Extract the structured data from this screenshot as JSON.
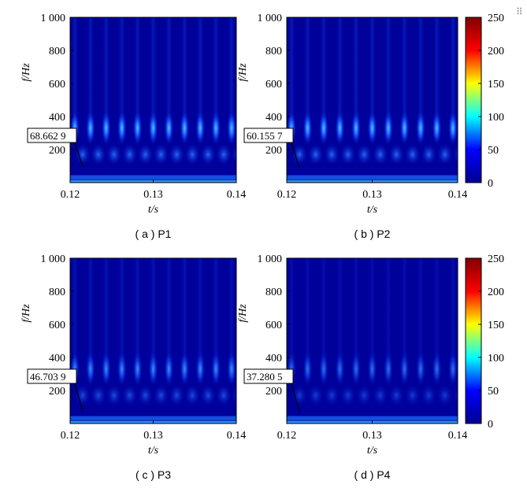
{
  "chart_data": [
    {
      "type": "heatmap",
      "caption": "( a ) P1",
      "xlabel": "t/s",
      "ylabel": "f/Hz",
      "xlim": [
        0.12,
        0.14
      ],
      "ylim": [
        0,
        1000
      ],
      "xticks": [
        "0.12",
        "0.13",
        "0.14"
      ],
      "yticks": [
        "200",
        "400",
        "600",
        "800",
        "1 000"
      ],
      "annotation": "68.662 9",
      "annotation_freq": 68.6629
    },
    {
      "type": "heatmap",
      "caption": "( b ) P2",
      "xlabel": "t/s",
      "ylabel": "f/Hz",
      "xlim": [
        0.12,
        0.14
      ],
      "ylim": [
        0,
        1000
      ],
      "xticks": [
        "0.12",
        "0.13",
        "0.14"
      ],
      "yticks": [
        "200",
        "400",
        "600",
        "800",
        "1 000"
      ],
      "annotation": "60.155 7",
      "annotation_freq": 60.1557,
      "colorbar": {
        "ticks": [
          "0",
          "50",
          "100",
          "150",
          "200",
          "250"
        ],
        "range": [
          0,
          250
        ]
      }
    },
    {
      "type": "heatmap",
      "caption": "( c ) P3",
      "xlabel": "t/s",
      "ylabel": "f/Hz",
      "xlim": [
        0.12,
        0.14
      ],
      "ylim": [
        0,
        1000
      ],
      "xticks": [
        "0.12",
        "0.13",
        "0.14"
      ],
      "yticks": [
        "200",
        "400",
        "600",
        "800",
        "1 000"
      ],
      "annotation": "46.703 9",
      "annotation_freq": 46.7039
    },
    {
      "type": "heatmap",
      "caption": "( d ) P4",
      "xlabel": "t/s",
      "ylabel": "f/Hz",
      "xlim": [
        0.12,
        0.14
      ],
      "ylim": [
        0,
        1000
      ],
      "xticks": [
        "0.12",
        "0.13",
        "0.14"
      ],
      "yticks": [
        "200",
        "400",
        "600",
        "800",
        "1 000"
      ],
      "annotation": "37.280 5",
      "annotation_freq": 37.2805,
      "colorbar": {
        "ticks": [
          "0",
          "50",
          "100",
          "150",
          "200",
          "250"
        ],
        "range": [
          0,
          250
        ]
      }
    }
  ],
  "colormap": [
    "#00008f",
    "#0000ff",
    "#00ffff",
    "#ffff00",
    "#ff0000",
    "#800000"
  ]
}
